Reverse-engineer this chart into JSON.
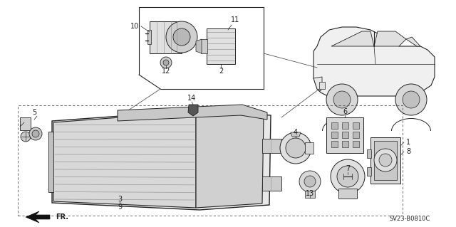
{
  "bg_color": "#ffffff",
  "line_color": "#222222",
  "part_number": "SV23-B0810C",
  "fig_width": 6.4,
  "fig_height": 3.19,
  "dpi": 100
}
